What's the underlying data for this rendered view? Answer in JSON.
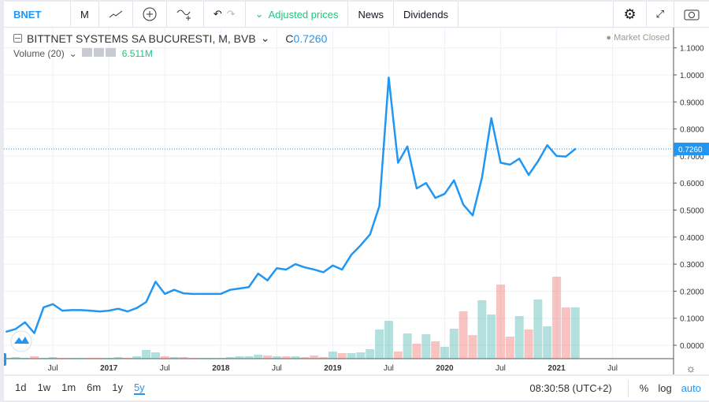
{
  "toolbar": {
    "symbol": "BNET",
    "interval": "M",
    "adjusted": "Adjusted prices",
    "news": "News",
    "dividends": "Dividends"
  },
  "legend": {
    "title": "BITTNET SYSTEMS SA BUCURESTI, M, BVB",
    "close_label": "C",
    "close_value": "0.7260",
    "volume_label": "Volume (20)",
    "volume_value": "6.511M",
    "market_status": "Market Closed"
  },
  "colors": {
    "line": "#2196f3",
    "up": "#26a69a",
    "down": "#ef5350",
    "accent": "#2196f3",
    "green_text": "#26c281"
  },
  "bottom": {
    "ranges": [
      "1d",
      "1w",
      "1m",
      "6m",
      "1y",
      "5y"
    ],
    "active_range": "5y",
    "time": "08:30:58 (UTC+2)",
    "percent": "%",
    "log": "log",
    "auto": "auto"
  },
  "chart_data": {
    "type": "line",
    "price_axis": [
      "1.1000",
      "1.0000",
      "0.9000",
      "0.8000",
      "0.7000",
      "0.6000",
      "0.5000",
      "0.4000",
      "0.3000",
      "0.2000",
      "0.1000",
      "0.0000"
    ],
    "time_axis": [
      "Jul",
      "2017",
      "Jul",
      "2018",
      "Jul",
      "2019",
      "Jul",
      "2020",
      "Jul",
      "2021",
      "Jul"
    ],
    "start": "2016-02",
    "interval": "monthly",
    "last_price_label": "0.7260",
    "ylim": [
      0,
      1.1
    ],
    "close": [
      0.05,
      0.06,
      0.085,
      0.045,
      0.14,
      0.152,
      0.128,
      0.13,
      0.13,
      0.128,
      0.125,
      0.128,
      0.135,
      0.125,
      0.138,
      0.16,
      0.235,
      0.19,
      0.205,
      0.192,
      0.19,
      0.19,
      0.19,
      0.19,
      0.205,
      0.21,
      0.215,
      0.265,
      0.24,
      0.285,
      0.28,
      0.3,
      0.288,
      0.28,
      0.27,
      0.295,
      0.28,
      0.335,
      0.37,
      0.41,
      0.515,
      0.99,
      0.675,
      0.735,
      0.58,
      0.6,
      0.545,
      0.56,
      0.61,
      0.52,
      0.48,
      0.62,
      0.84,
      0.675,
      0.668,
      0.69,
      0.63,
      0.68,
      0.74,
      0.7,
      0.698,
      0.726
    ],
    "volume_millions": [
      0.1,
      0.2,
      0.1,
      0.3,
      0.1,
      0.2,
      0.1,
      0.1,
      0.1,
      0.1,
      0.1,
      0.1,
      0.2,
      0.1,
      0.3,
      1.1,
      0.8,
      0.3,
      0.2,
      0.2,
      0.1,
      0.1,
      0.1,
      0.1,
      0.2,
      0.3,
      0.3,
      0.5,
      0.4,
      0.3,
      0.3,
      0.3,
      0.2,
      0.4,
      0.2,
      0.9,
      0.7,
      0.7,
      0.8,
      1.2,
      3.7,
      4.8,
      0.9,
      3.2,
      1.9,
      3.1,
      2.2,
      1.5,
      3.8,
      6.0,
      3.0,
      7.4,
      5.6,
      9.4,
      2.8,
      5.4,
      3.7,
      7.5,
      4.1,
      10.4,
      6.5,
      6.511
    ]
  }
}
